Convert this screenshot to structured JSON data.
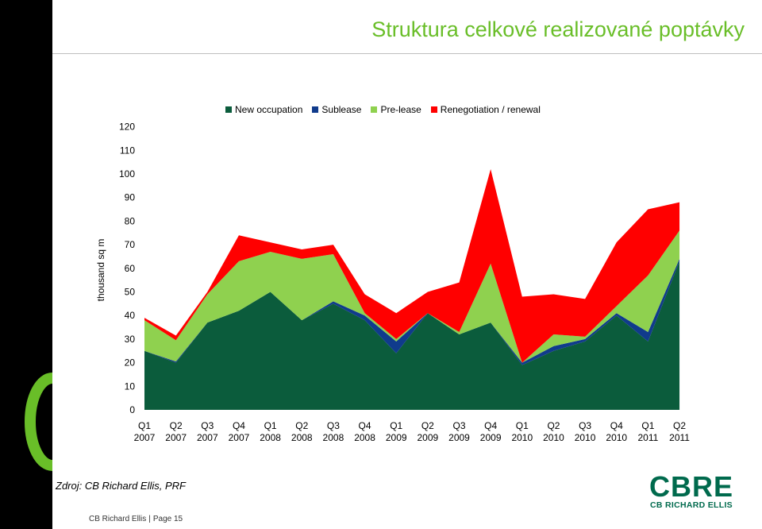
{
  "page": {
    "title": "Struktura celkové realizované poptávky",
    "source_note": "Zdroj: CB Richard Ellis, PRF",
    "footer_company": "CB Richard Ellis",
    "footer_separator": "|",
    "footer_page": "Page 15",
    "logo_word": "CBRE",
    "logo_subtitle": "CB RICHARD ELLIS",
    "decor": {
      "arc": "green-arc-decoration"
    }
  },
  "colors": {
    "new_occupation": "#0b5c3c",
    "sublease": "#103b8c",
    "pre_lease": "#8fd14f",
    "renegotiation": "#ff0000",
    "title": "#69be28",
    "brand": "#006a4d"
  },
  "chart_data": {
    "type": "area",
    "stacked": true,
    "title": "",
    "xlabel": "",
    "ylabel": "thousand sq m",
    "ylim": [
      0,
      120
    ],
    "yticks": [
      0,
      10,
      20,
      30,
      40,
      50,
      60,
      70,
      80,
      90,
      100,
      110,
      120
    ],
    "grid": false,
    "legend_position": "top",
    "categories": [
      {
        "q": "Q1",
        "y": "2007"
      },
      {
        "q": "Q2",
        "y": "2007"
      },
      {
        "q": "Q3",
        "y": "2007"
      },
      {
        "q": "Q4",
        "y": "2007"
      },
      {
        "q": "Q1",
        "y": "2008"
      },
      {
        "q": "Q2",
        "y": "2008"
      },
      {
        "q": "Q3",
        "y": "2008"
      },
      {
        "q": "Q4",
        "y": "2008"
      },
      {
        "q": "Q1",
        "y": "2009"
      },
      {
        "q": "Q2",
        "y": "2009"
      },
      {
        "q": "Q3",
        "y": "2009"
      },
      {
        "q": "Q4",
        "y": "2009"
      },
      {
        "q": "Q1",
        "y": "2010"
      },
      {
        "q": "Q2",
        "y": "2010"
      },
      {
        "q": "Q3",
        "y": "2010"
      },
      {
        "q": "Q4",
        "y": "2010"
      },
      {
        "q": "Q1",
        "y": "2011"
      },
      {
        "q": "Q2",
        "y": "2011"
      }
    ],
    "series": [
      {
        "name": "New occupation",
        "color": "#0b5c3c",
        "values": [
          25,
          20,
          37,
          42,
          50,
          38,
          45,
          38,
          24,
          41,
          32,
          37,
          19,
          25,
          29,
          40,
          29,
          63
        ]
      },
      {
        "name": "Sublease",
        "color": "#103b8c",
        "values": [
          0,
          0.5,
          0,
          0,
          0,
          0,
          1,
          2,
          5,
          0,
          0,
          0,
          1,
          2,
          1,
          1,
          4,
          1
        ]
      },
      {
        "name": "Pre-lease",
        "color": "#8fd14f",
        "values": [
          13,
          9,
          12,
          21,
          17,
          26,
          20,
          1,
          1,
          0,
          1,
          25,
          0,
          5,
          1,
          3,
          24,
          12
        ]
      },
      {
        "name": "Renegotiation / renewal",
        "color": "#ff0000",
        "values": [
          1,
          2,
          1,
          11,
          4,
          4,
          4,
          8,
          11,
          9,
          21,
          40,
          28,
          17,
          16,
          27,
          28,
          12
        ]
      }
    ]
  }
}
